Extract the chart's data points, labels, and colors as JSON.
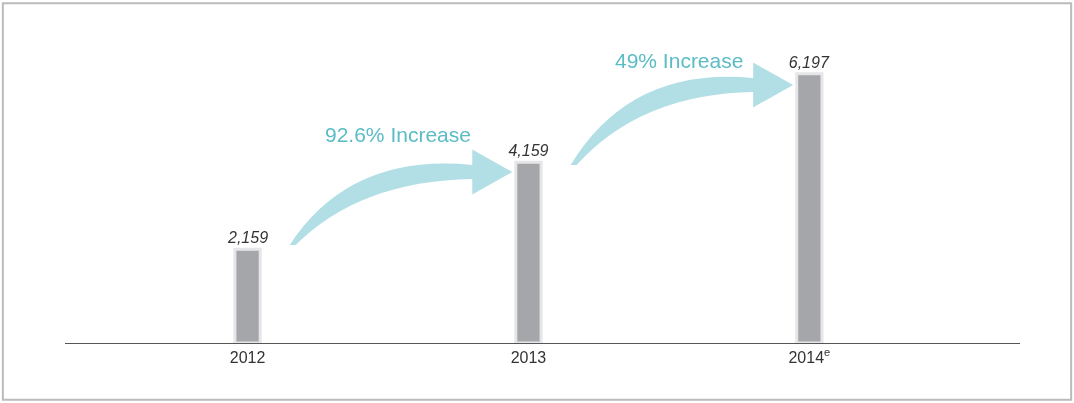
{
  "chart_data": {
    "type": "bar",
    "categories": [
      "2012",
      "2013",
      "2014$^{e}$"
    ],
    "values": [
      2159,
      4159,
      6197
    ],
    "value_labels": [
      "2,159",
      "4,159",
      "6,197"
    ],
    "color": "#a5a6aa",
    "annotations": [
      "92.6% Increase",
      "49% Increase"
    ]
  }
}
